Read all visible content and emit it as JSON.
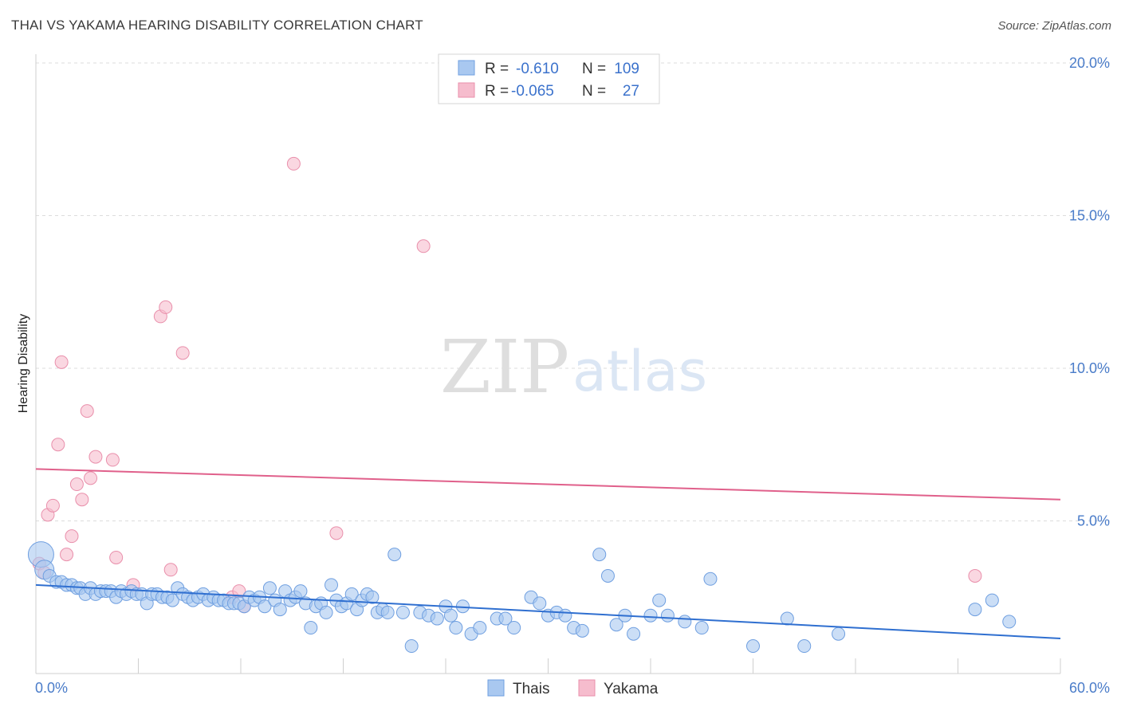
{
  "title": "THAI VS YAKAMA HEARING DISABILITY CORRELATION CHART",
  "source": "Source: ZipAtlas.com",
  "watermark": {
    "part1": "ZIP",
    "part2": "atlas"
  },
  "colors": {
    "thai_fill": "#a9c8f0",
    "thai_stroke": "#6f9fe0",
    "thai_line": "#2f6fd0",
    "yakama_fill": "#f6bccd",
    "yakama_stroke": "#e98fab",
    "yakama_line": "#e0608b",
    "tick_label": "#4a7cc9",
    "grid": "#dcdcdc"
  },
  "legend": {
    "rows": [
      {
        "r_label": "R = ",
        "r_value": "-0.610",
        "n_label": "N = ",
        "n_value": "109"
      },
      {
        "r_label": "R = ",
        "r_value": "-0.065",
        "n_label": "N = ",
        "n_value": "27"
      }
    ]
  },
  "bottom_legend": [
    {
      "label": "Thais"
    },
    {
      "label": "Yakama"
    }
  ],
  "chart_data": {
    "type": "scatter",
    "title": "THAI VS YAKAMA HEARING DISABILITY CORRELATION CHART",
    "xlabel": "",
    "ylabel": "Hearing Disability",
    "xlim": [
      0,
      60
    ],
    "ylim": [
      0,
      20
    ],
    "x_tick_labels": [
      "0.0%",
      "60.0%"
    ],
    "y_ticks": [
      5,
      10,
      15,
      20
    ],
    "y_tick_labels": [
      "5.0%",
      "10.0%",
      "15.0%",
      "20.0%"
    ],
    "grid": "horizontal dashed",
    "legend_position": "top-center",
    "series": [
      {
        "name": "Thais",
        "trend": {
          "x": [
            0,
            60
          ],
          "y": [
            2.9,
            1.15
          ]
        },
        "points": [
          [
            0.3,
            3.9
          ],
          [
            0.5,
            3.4
          ],
          [
            0.8,
            3.2
          ],
          [
            1.2,
            3.0
          ],
          [
            1.5,
            3.0
          ],
          [
            1.8,
            2.9
          ],
          [
            2.1,
            2.9
          ],
          [
            2.4,
            2.8
          ],
          [
            2.6,
            2.8
          ],
          [
            2.9,
            2.6
          ],
          [
            3.2,
            2.8
          ],
          [
            3.5,
            2.6
          ],
          [
            3.8,
            2.7
          ],
          [
            4.1,
            2.7
          ],
          [
            4.4,
            2.7
          ],
          [
            4.7,
            2.5
          ],
          [
            5.0,
            2.7
          ],
          [
            5.3,
            2.6
          ],
          [
            5.6,
            2.7
          ],
          [
            5.9,
            2.6
          ],
          [
            6.2,
            2.6
          ],
          [
            6.5,
            2.3
          ],
          [
            6.8,
            2.6
          ],
          [
            7.1,
            2.6
          ],
          [
            7.4,
            2.5
          ],
          [
            7.7,
            2.5
          ],
          [
            8.0,
            2.4
          ],
          [
            8.3,
            2.8
          ],
          [
            8.6,
            2.6
          ],
          [
            8.9,
            2.5
          ],
          [
            9.2,
            2.4
          ],
          [
            9.5,
            2.5
          ],
          [
            9.8,
            2.6
          ],
          [
            10.1,
            2.4
          ],
          [
            10.4,
            2.5
          ],
          [
            10.7,
            2.4
          ],
          [
            11.0,
            2.4
          ],
          [
            11.3,
            2.3
          ],
          [
            11.6,
            2.3
          ],
          [
            11.9,
            2.3
          ],
          [
            12.2,
            2.2
          ],
          [
            12.5,
            2.5
          ],
          [
            12.8,
            2.4
          ],
          [
            13.1,
            2.5
          ],
          [
            13.4,
            2.2
          ],
          [
            13.7,
            2.8
          ],
          [
            14.0,
            2.4
          ],
          [
            14.3,
            2.1
          ],
          [
            14.6,
            2.7
          ],
          [
            14.9,
            2.4
          ],
          [
            15.2,
            2.5
          ],
          [
            15.5,
            2.7
          ],
          [
            15.8,
            2.3
          ],
          [
            16.1,
            1.5
          ],
          [
            16.4,
            2.2
          ],
          [
            16.7,
            2.3
          ],
          [
            17.0,
            2.0
          ],
          [
            17.3,
            2.9
          ],
          [
            17.6,
            2.4
          ],
          [
            17.9,
            2.2
          ],
          [
            18.2,
            2.3
          ],
          [
            18.5,
            2.6
          ],
          [
            18.8,
            2.1
          ],
          [
            19.1,
            2.4
          ],
          [
            19.4,
            2.6
          ],
          [
            19.7,
            2.5
          ],
          [
            20.0,
            2.0
          ],
          [
            20.3,
            2.1
          ],
          [
            20.6,
            2.0
          ],
          [
            21.0,
            3.9
          ],
          [
            21.5,
            2.0
          ],
          [
            22.0,
            0.9
          ],
          [
            22.5,
            2.0
          ],
          [
            23.0,
            1.9
          ],
          [
            23.5,
            1.8
          ],
          [
            24.0,
            2.2
          ],
          [
            24.3,
            1.9
          ],
          [
            24.6,
            1.5
          ],
          [
            25.0,
            2.2
          ],
          [
            25.5,
            1.3
          ],
          [
            26.0,
            1.5
          ],
          [
            27.0,
            1.8
          ],
          [
            27.5,
            1.8
          ],
          [
            28.0,
            1.5
          ],
          [
            29.0,
            2.5
          ],
          [
            29.5,
            2.3
          ],
          [
            30.0,
            1.9
          ],
          [
            30.5,
            2.0
          ],
          [
            31.0,
            1.9
          ],
          [
            31.5,
            1.5
          ],
          [
            32.0,
            1.4
          ],
          [
            33.0,
            3.9
          ],
          [
            33.5,
            3.2
          ],
          [
            34.0,
            1.6
          ],
          [
            34.5,
            1.9
          ],
          [
            35.0,
            1.3
          ],
          [
            36.0,
            1.9
          ],
          [
            36.5,
            2.4
          ],
          [
            37.0,
            1.9
          ],
          [
            38.0,
            1.7
          ],
          [
            39.0,
            1.5
          ],
          [
            39.5,
            3.1
          ],
          [
            42.0,
            0.9
          ],
          [
            44.0,
            1.8
          ],
          [
            45.0,
            0.9
          ],
          [
            47.0,
            1.3
          ],
          [
            55.0,
            2.1
          ],
          [
            56.0,
            2.4
          ],
          [
            57.0,
            1.7
          ]
        ]
      },
      {
        "name": "Yakama",
        "trend": {
          "x": [
            0,
            60
          ],
          "y": [
            6.7,
            5.7
          ]
        },
        "points": [
          [
            0.2,
            3.6
          ],
          [
            0.5,
            3.3
          ],
          [
            0.7,
            5.2
          ],
          [
            1.0,
            5.5
          ],
          [
            1.3,
            7.5
          ],
          [
            1.5,
            10.2
          ],
          [
            1.8,
            3.9
          ],
          [
            2.1,
            4.5
          ],
          [
            2.4,
            6.2
          ],
          [
            2.7,
            5.7
          ],
          [
            3.0,
            8.6
          ],
          [
            3.2,
            6.4
          ],
          [
            3.5,
            7.1
          ],
          [
            4.5,
            7.0
          ],
          [
            4.7,
            3.8
          ],
          [
            5.7,
            2.9
          ],
          [
            7.3,
            11.7
          ],
          [
            7.6,
            12.0
          ],
          [
            7.9,
            3.4
          ],
          [
            8.6,
            10.5
          ],
          [
            11.5,
            2.5
          ],
          [
            11.9,
            2.7
          ],
          [
            12.2,
            2.2
          ],
          [
            15.1,
            16.7
          ],
          [
            17.6,
            4.6
          ],
          [
            22.7,
            14.0
          ],
          [
            55.0,
            3.2
          ]
        ]
      }
    ]
  }
}
